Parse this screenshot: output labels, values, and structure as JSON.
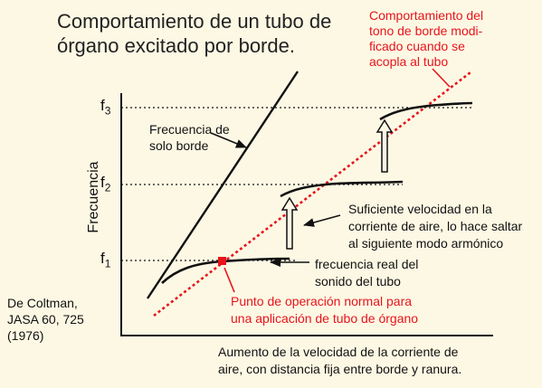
{
  "title": {
    "line1": "Comportamiento de un tubo de",
    "line2": "órgano excitado por borde."
  },
  "edge_tone_modified": {
    "line1": "Comportamiento del",
    "line2": "tono de borde modi-",
    "line3": "ficado cuando se",
    "line4": "acopla al tubo"
  },
  "edge_only": {
    "line1": "Frecuencia de",
    "line2": "solo borde"
  },
  "jump_note": {
    "line1": "Suficiente velocidad en la",
    "line2": "corriente de aire, lo hace saltar",
    "line3": "al siguiente modo armónico"
  },
  "real_freq": {
    "line1": "frecuencia real del",
    "line2": "sonido del tubo"
  },
  "operating_point": {
    "line1": "Punto de operación normal para",
    "line2": "una aplicación de tubo de órgano"
  },
  "citation": {
    "line1": "De Coltman,",
    "line2": "JASA 60, 725",
    "line3": "(1976)"
  },
  "y_axis_label": "Frecuencia",
  "x_axis_label": {
    "line1": "Aumento de la velocidad de la corriente de",
    "line2": "aire, con distancia fija entre borde y ranura."
  },
  "freq_levels": [
    {
      "base": "f",
      "sub": "1"
    },
    {
      "base": "f",
      "sub": "2"
    },
    {
      "base": "f",
      "sub": "3"
    }
  ],
  "colors": {
    "red": "#e8141b",
    "background": "#fdf8e4",
    "ink": "#111111"
  }
}
